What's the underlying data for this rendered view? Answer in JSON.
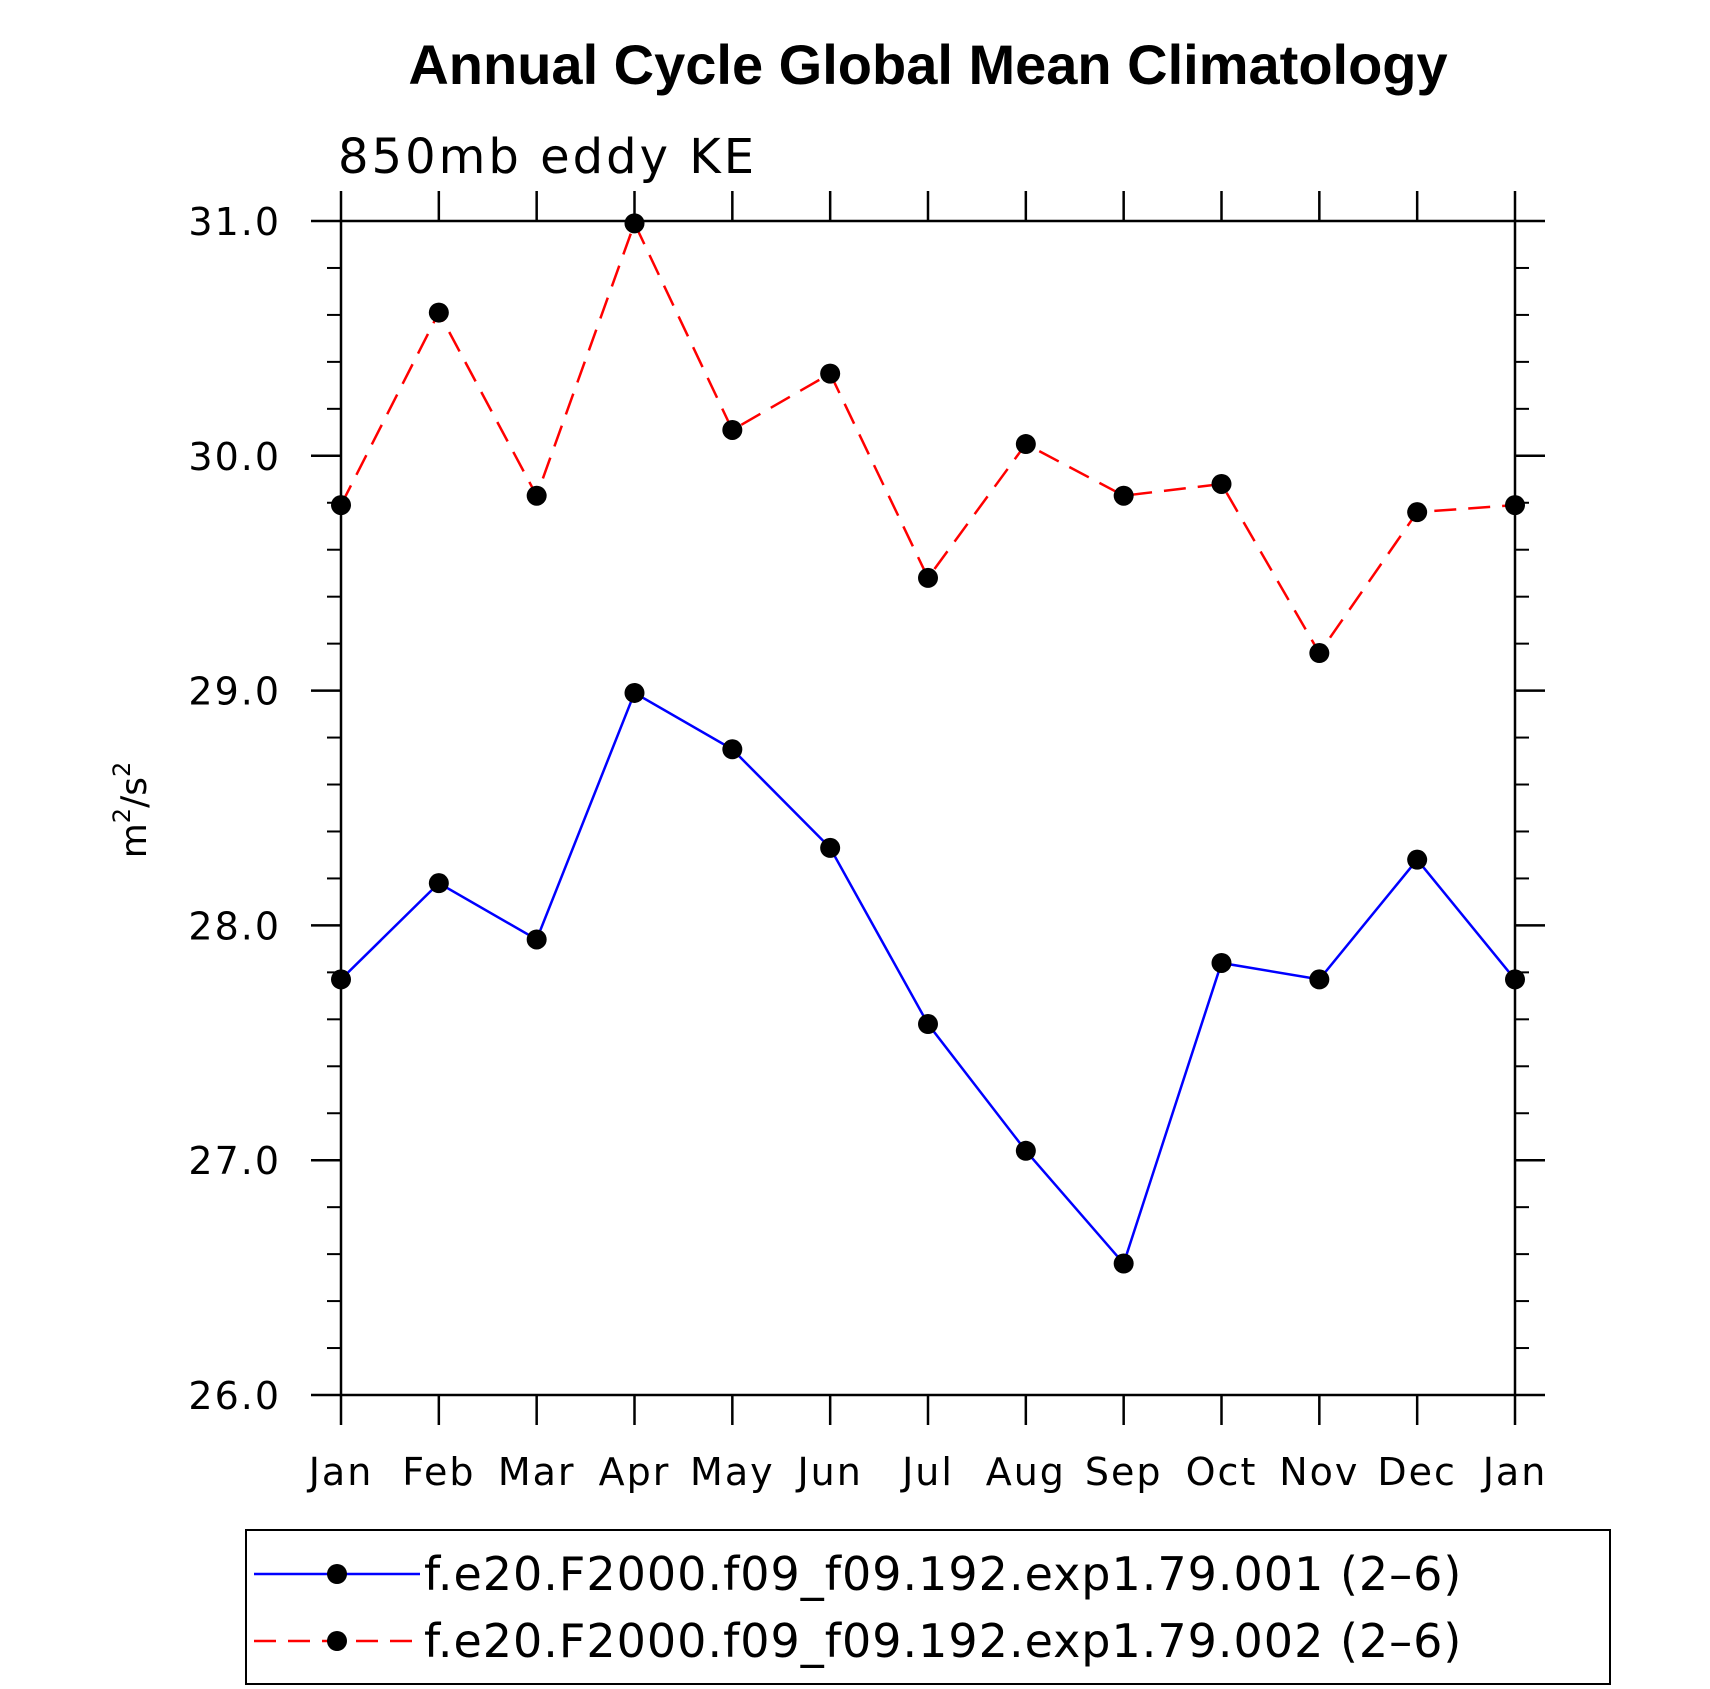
{
  "chart_data": {
    "type": "line",
    "title": "Annual Cycle Global Mean Climatology",
    "subtitle": "850mb eddy KE",
    "xlabel": "",
    "ylabel_base": "m",
    "ylabel_sup1": "2",
    "ylabel_mid": "/s",
    "ylabel_sup2": "2",
    "ylim": [
      26.0,
      31.0
    ],
    "yticks": [
      "26.0",
      "27.0",
      "28.0",
      "29.0",
      "30.0",
      "31.0"
    ],
    "categories": [
      "Jan",
      "Feb",
      "Mar",
      "Apr",
      "May",
      "Jun",
      "Jul",
      "Aug",
      "Sep",
      "Oct",
      "Nov",
      "Dec",
      "Jan"
    ],
    "series": [
      {
        "name": "f.e20.F2000.f09_f09.192.exp1.79.001 (2–6)",
        "color": "#0000ff",
        "dash": "solid",
        "values": [
          27.77,
          28.18,
          27.94,
          28.99,
          28.75,
          28.33,
          27.58,
          27.04,
          26.56,
          27.84,
          27.77,
          28.28,
          27.77
        ]
      },
      {
        "name": "f.e20.F2000.f09_f09.192.exp1.79.002 (2–6)",
        "color": "#ff0000",
        "dash": "dashed",
        "values": [
          29.79,
          30.61,
          29.83,
          30.99,
          30.11,
          30.35,
          29.48,
          30.05,
          29.83,
          29.88,
          29.16,
          29.76,
          29.79
        ]
      }
    ],
    "legend_position": "bottom"
  }
}
